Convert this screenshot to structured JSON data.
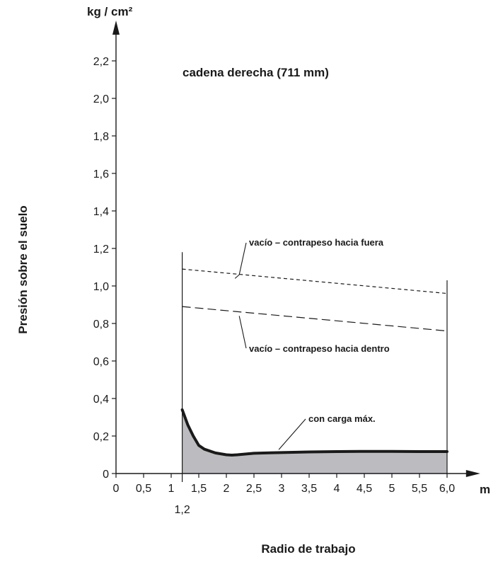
{
  "chart_data": {
    "type": "line",
    "title": "cadena derecha (711 mm)",
    "y_unit": "kg / cm²",
    "x_unit": "m",
    "ylabel": "Presión sobre el suelo",
    "xlabel": "Radio de trabajo",
    "xlim": [
      0,
      6.6
    ],
    "ylim": [
      0,
      2.4
    ],
    "x_ticks": [
      {
        "v": 0,
        "t": "0"
      },
      {
        "v": 0.5,
        "t": "0,5"
      },
      {
        "v": 1,
        "t": "1"
      },
      {
        "v": 1.5,
        "t": "1,5"
      },
      {
        "v": 2,
        "t": "2"
      },
      {
        "v": 2.5,
        "t": "2,5"
      },
      {
        "v": 3,
        "t": "3"
      },
      {
        "v": 3.5,
        "t": "3,5"
      },
      {
        "v": 4,
        "t": "4"
      },
      {
        "v": 4.5,
        "t": "4,5"
      },
      {
        "v": 5,
        "t": "5"
      },
      {
        "v": 5.5,
        "t": "5,5"
      },
      {
        "v": 6,
        "t": "6,0"
      }
    ],
    "x_extra_tick": {
      "v": 1.2,
      "t": "1,2"
    },
    "y_ticks": [
      {
        "v": 0,
        "t": "0"
      },
      {
        "v": 0.2,
        "t": "0,2"
      },
      {
        "v": 0.4,
        "t": "0,4"
      },
      {
        "v": 0.6,
        "t": "0,6"
      },
      {
        "v": 0.8,
        "t": "0,8"
      },
      {
        "v": 1.0,
        "t": "1,0"
      },
      {
        "v": 1.2,
        "t": "1,2"
      },
      {
        "v": 1.4,
        "t": "1,4"
      },
      {
        "v": 1.6,
        "t": "1,6"
      },
      {
        "v": 1.8,
        "t": "1,8"
      },
      {
        "v": 2.0,
        "t": "2,0"
      },
      {
        "v": 2.2,
        "t": "2,2"
      }
    ],
    "series": [
      {
        "name": "vacío – contrapeso hacia fuera",
        "style": "short-dash",
        "x": [
          1.2,
          6.0
        ],
        "y": [
          1.09,
          0.96
        ]
      },
      {
        "name": "vacío – contrapeso hacia dentro",
        "style": "long-dash",
        "x": [
          1.2,
          6.0
        ],
        "y": [
          0.89,
          0.76
        ]
      },
      {
        "name": "con carga máx.",
        "style": "thick-solid-filled",
        "x": [
          1.2,
          1.3,
          1.4,
          1.5,
          1.6,
          1.8,
          2.0,
          2.1,
          2.2,
          2.5,
          3.0,
          3.5,
          4.0,
          4.5,
          5.0,
          5.5,
          6.0
        ],
        "y": [
          0.34,
          0.26,
          0.2,
          0.15,
          0.13,
          0.11,
          0.1,
          0.098,
          0.1,
          0.108,
          0.112,
          0.115,
          0.117,
          0.118,
          0.118,
          0.117,
          0.117
        ]
      }
    ],
    "fill_color": "#bcbcc0",
    "line_color": "#1a1a1a"
  }
}
